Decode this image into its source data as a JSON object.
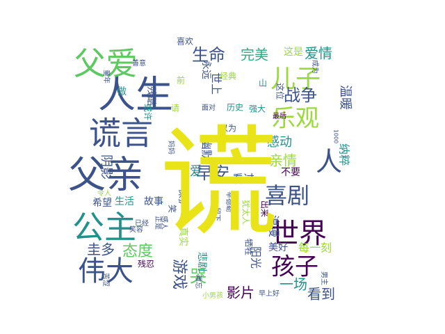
{
  "palette": {
    "background": "#ffffff",
    "yellow": "#e8e419",
    "green": "#5ec962",
    "teal": "#21918c",
    "blue": "#3b528b",
    "purple": "#440154",
    "lightgreen": "#9bd93c",
    "cyan": "#2c728e",
    "darkgreen": "#28ae80"
  },
  "words": [
    {
      "text": "人生",
      "c": "blue"
    },
    {
      "text": "父爱",
      "c": "green"
    },
    {
      "text": "谎言",
      "c": "blue"
    },
    {
      "text": "父亲",
      "c": "blue"
    },
    {
      "text": "公主",
      "c": "teal"
    },
    {
      "text": "伟大",
      "c": "blue"
    },
    {
      "text": "阴影",
      "c": "blue"
    },
    {
      "text": "圭多",
      "c": "blue"
    },
    {
      "text": "希望",
      "c": "blue"
    },
    {
      "text": "生命",
      "c": "blue"
    },
    {
      "text": "完美",
      "c": "darkgreen"
    },
    {
      "text": "这是",
      "c": "lightgreen"
    },
    {
      "text": "爱情",
      "c": "teal"
    },
    {
      "text": "儿子",
      "c": "lightgreen"
    },
    {
      "text": "乐观",
      "c": "lightgreen"
    },
    {
      "text": "战争",
      "c": "blue"
    },
    {
      "text": "温暖",
      "c": "blue"
    },
    {
      "text": "感动",
      "c": "teal"
    },
    {
      "text": "人",
      "c": "blue"
    },
    {
      "text": "纳粹",
      "c": "teal"
    },
    {
      "text": "亲情",
      "c": "lightgreen"
    },
    {
      "text": "早安",
      "c": "blue"
    },
    {
      "text": "看过",
      "c": "blue"
    },
    {
      "text": "喜剧",
      "c": "blue"
    },
    {
      "text": "世界",
      "c": "purple"
    },
    {
      "text": "孩子",
      "c": "purple"
    },
    {
      "text": "每一刻",
      "c": "lightgreen"
    },
    {
      "text": "态度",
      "c": "green"
    },
    {
      "text": "美好",
      "c": "blue"
    },
    {
      "text": "游戏",
      "c": "blue"
    },
    {
      "text": "哭",
      "c": "green"
    },
    {
      "text": "影片",
      "c": "purple"
    },
    {
      "text": "一场",
      "c": "teal"
    },
    {
      "text": "看到",
      "c": "blue"
    },
    {
      "text": "生活",
      "c": "teal"
    },
    {
      "text": "故事",
      "c": "blue"
    },
    {
      "text": "爱",
      "c": "teal"
    },
    {
      "text": "保护",
      "c": "blue"
    },
    {
      "text": "残酷",
      "c": "blue"
    },
    {
      "text": "喜欢",
      "c": "blue"
    },
    {
      "text": "永远",
      "c": "blue"
    },
    {
      "text": "世上",
      "c": "blue"
    },
    {
      "text": "经典",
      "c": "lightgreen"
    },
    {
      "text": "历史",
      "c": "teal"
    },
    {
      "text": "强大",
      "c": "teal"
    },
    {
      "text": "以为",
      "c": "blue"
    },
    {
      "text": "智慧",
      "c": "lightgreen"
    },
    {
      "text": "想要",
      "c": "blue"
    },
    {
      "text": "不要",
      "c": "purple"
    },
    {
      "text": "浪漫",
      "c": "blue"
    },
    {
      "text": "阳光",
      "c": "blue"
    },
    {
      "text": "悲剧",
      "c": "teal"
    },
    {
      "text": "牺牲",
      "c": "blue"
    },
    {
      "text": "出来",
      "c": "purple"
    },
    {
      "text": "犹太人",
      "c": "lightgreen"
    },
    {
      "text": "辛德勒",
      "c": "blue"
    },
    {
      "text": "留下",
      "c": "blue"
    },
    {
      "text": "早上好",
      "c": "blue"
    },
    {
      "text": "小男孩",
      "c": "lightgreen"
    },
    {
      "text": "笑容",
      "c": "blue"
    },
    {
      "text": "做",
      "c": "teal"
    },
    {
      "text": "善意",
      "c": "blue"
    },
    {
      "text": "童年",
      "c": "blue"
    },
    {
      "text": "前",
      "c": "lightgreen"
    },
    {
      "text": "这位",
      "c": "blue"
    },
    {
      "text": "山",
      "c": "teal"
    },
    {
      "text": "成为",
      "c": "blue"
    },
    {
      "text": "1000",
      "c": "blue"
    },
    {
      "text": "面对",
      "c": "blue"
    },
    {
      "text": "或许",
      "c": "teal"
    },
    {
      "text": "残忍",
      "c": "purple"
    },
    {
      "text": "已经",
      "c": "blue"
    },
    {
      "text": "正是",
      "c": "blue"
    },
    {
      "text": "笑",
      "c": "blue"
    },
    {
      "text": "感人",
      "c": "blue"
    },
    {
      "text": "令人",
      "c": "lightgreen"
    },
    {
      "text": "苦涩",
      "c": "blue"
    },
    {
      "text": "男主",
      "c": "blue"
    },
    {
      "text": "真实",
      "c": "lightgreen"
    },
    {
      "text": "请",
      "c": "lightgreen"
    },
    {
      "text": "幽默",
      "c": "blue"
    },
    {
      "text": "最后",
      "c": "purple"
    },
    {
      "text": "难忘",
      "c": "blue"
    },
    {
      "text": "妈妈",
      "c": "blue"
    },
    {
      "text": "谎",
      "c": "yellow"
    }
  ]
}
